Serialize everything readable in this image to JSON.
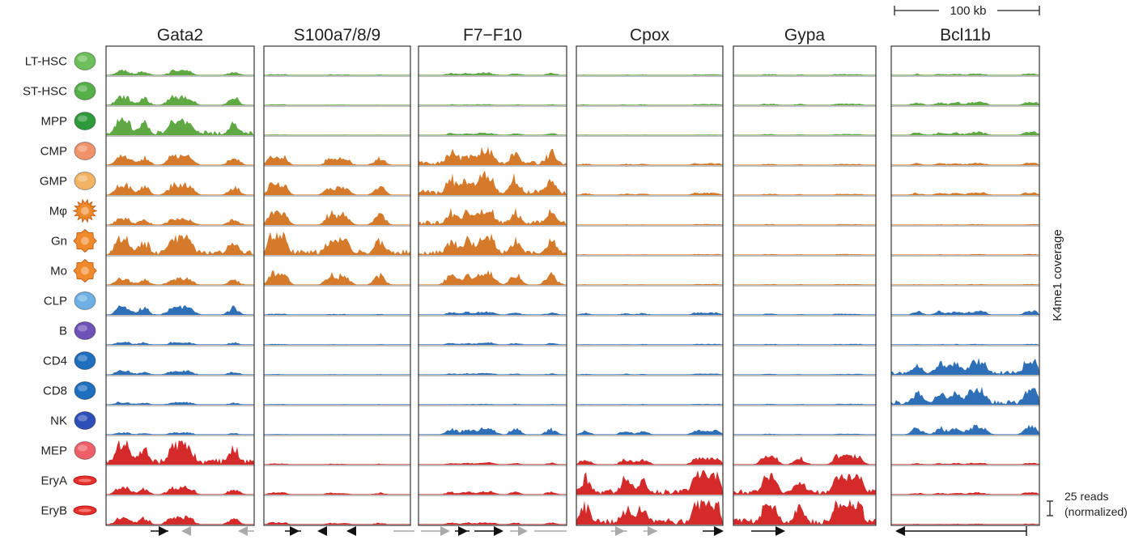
{
  "chart_data": {
    "type": "area",
    "title": "",
    "ylabel": "K4me1 coverage",
    "scale_bar": {
      "label": "100 kb"
    },
    "read_scale": {
      "label_line1": "25 reads",
      "label_line2": "(normalized)"
    },
    "loci": [
      "Gata2",
      "S100a7/8/9",
      "F7−F10",
      "Cpox",
      "Gypa",
      "Bcl11b"
    ],
    "cell_types": [
      {
        "name": "LT-HSC",
        "color": "#5fa843",
        "icon": "round-cell-icon"
      },
      {
        "name": "ST-HSC",
        "color": "#5fa843",
        "icon": "round-cell-icon"
      },
      {
        "name": "MPP",
        "color": "#5fa843",
        "icon": "round-cell-icon"
      },
      {
        "name": "CMP",
        "color": "#d57a2b",
        "icon": "round-cell-icon"
      },
      {
        "name": "GMP",
        "color": "#d57a2b",
        "icon": "round-cell-icon"
      },
      {
        "name": "Mφ",
        "color": "#d57a2b",
        "icon": "spiky-cell-icon"
      },
      {
        "name": "Gn",
        "color": "#d57a2b",
        "icon": "lobed-cell-icon"
      },
      {
        "name": "Mo",
        "color": "#d57a2b",
        "icon": "lobed-cell-icon"
      },
      {
        "name": "CLP",
        "color": "#2e6fb7",
        "icon": "round-cell-icon"
      },
      {
        "name": "B",
        "color": "#2e6fb7",
        "icon": "round-cell-icon"
      },
      {
        "name": "CD4",
        "color": "#2e6fb7",
        "icon": "round-cell-icon"
      },
      {
        "name": "CD8",
        "color": "#2e6fb7",
        "icon": "round-cell-icon"
      },
      {
        "name": "NK",
        "color": "#2e6fb7",
        "icon": "round-cell-icon"
      },
      {
        "name": "MEP",
        "color": "#d42a2a",
        "icon": "round-cell-icon"
      },
      {
        "name": "EryA",
        "color": "#d42a2a",
        "icon": "disc-cell-icon"
      },
      {
        "name": "EryB",
        "color": "#d42a2a",
        "icon": "disc-cell-icon"
      }
    ],
    "icon_colors": [
      "#6cbf5a",
      "#55b049",
      "#2f9a3b",
      "#f0926a",
      "#f2b464",
      "#f08a2a",
      "#f08a2a",
      "#f08a2a",
      "#6fb0e4",
      "#6f52b8",
      "#1f6fbf",
      "#1f6fbf",
      "#2f4fb8",
      "#ef5f6a",
      "#e8302e",
      "#e8302e"
    ],
    "signal_levels": [
      [
        0.22,
        0.05,
        0.12,
        0.04,
        0.05,
        0.08
      ],
      [
        0.4,
        0.04,
        0.05,
        0.05,
        0.07,
        0.15
      ],
      [
        0.7,
        0.03,
        0.1,
        0.03,
        0.05,
        0.15
      ],
      [
        0.45,
        0.4,
        0.7,
        0.08,
        0.05,
        0.1
      ],
      [
        0.5,
        0.5,
        0.92,
        0.1,
        0.05,
        0.12
      ],
      [
        0.3,
        0.6,
        0.75,
        0.04,
        0.04,
        0.04
      ],
      [
        0.8,
        0.9,
        0.85,
        0.04,
        0.04,
        0.04
      ],
      [
        0.3,
        0.55,
        0.6,
        0.04,
        0.04,
        0.04
      ],
      [
        0.38,
        0.05,
        0.15,
        0.1,
        0.05,
        0.18
      ],
      [
        0.12,
        0.04,
        0.1,
        0.04,
        0.04,
        0.04
      ],
      [
        0.18,
        0.03,
        0.08,
        0.05,
        0.04,
        0.65
      ],
      [
        0.12,
        0.03,
        0.04,
        0.04,
        0.04,
        0.72
      ],
      [
        0.1,
        0.03,
        0.3,
        0.2,
        0.04,
        0.38
      ],
      [
        0.95,
        0.05,
        0.1,
        0.3,
        0.4,
        0.08
      ],
      [
        0.35,
        0.1,
        0.15,
        0.92,
        0.85,
        0.1
      ],
      [
        0.35,
        0.1,
        0.1,
        0.98,
        0.95,
        0.04
      ]
    ],
    "grid": false,
    "legend": "left"
  }
}
